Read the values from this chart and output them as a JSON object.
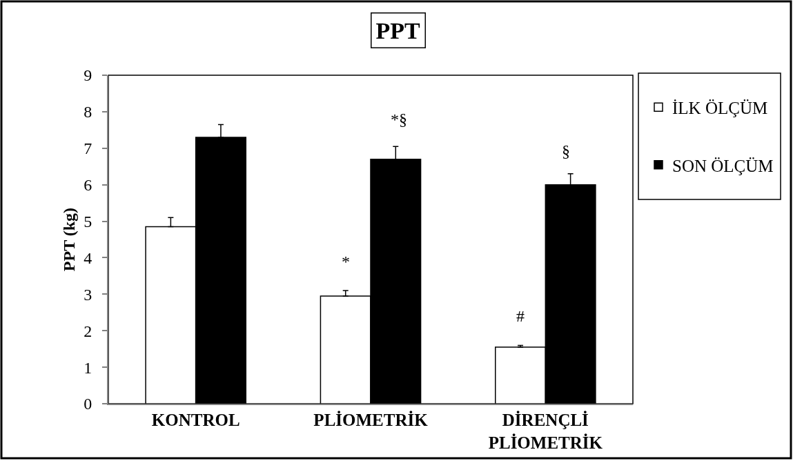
{
  "chart_data": {
    "type": "bar",
    "title": "PPT",
    "ylabel": "PPT (kg)",
    "categories": [
      "KONTROL",
      "PLİOMETRİK",
      "DİRENÇLİ PLİOMETRİK"
    ],
    "series": [
      {
        "name": "İLK ÖLÇÜM",
        "color": "#ffffff",
        "values": [
          4.85,
          2.95,
          1.55
        ],
        "errors": [
          [
            4.85,
            5.1
          ],
          [
            2.95,
            3.1
          ],
          [
            1.55,
            1.6
          ]
        ]
      },
      {
        "name": "SON ÖLÇÜM",
        "color": "#000000",
        "values": [
          7.3,
          6.7,
          6.0
        ],
        "errors": [
          [
            7.3,
            7.65
          ],
          [
            6.7,
            7.05
          ],
          [
            6.0,
            6.3
          ]
        ]
      }
    ],
    "ylim": [
      0,
      9
    ],
    "yticks": [
      0,
      1,
      2,
      3,
      4,
      5,
      6,
      7,
      8,
      9
    ],
    "annotations": [
      {
        "text": "*",
        "x": "PLİOMETRİK",
        "y": 3.1
      },
      "*§",
      "§",
      {
        "text": "#",
        "x": "DİRENÇLİ PLİOMETRİK",
        "y": 1.6
      }
    ],
    "legend": "top right"
  }
}
